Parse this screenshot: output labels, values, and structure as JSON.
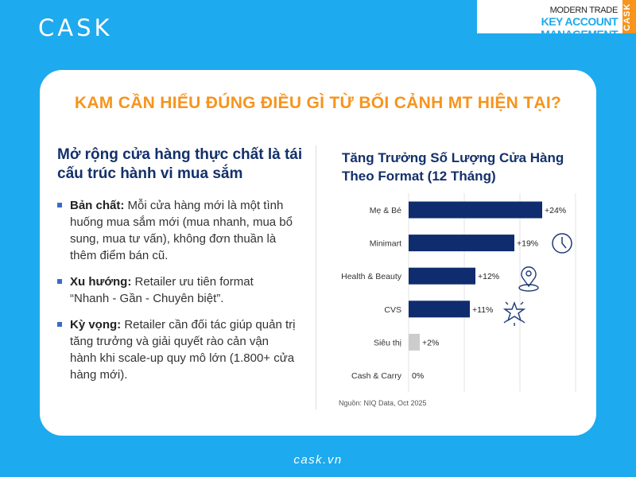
{
  "logo": "CASK",
  "badge": {
    "line1": "MODERN TRADE",
    "line2": "KEY ACCOUNT MANAGEMENT",
    "side": "CASK"
  },
  "title": "KAM CẦN HIỂU ĐÚNG ĐIỀU GÌ TỪ BỐI CẢNH MT HIỆN TẠI?",
  "left": {
    "heading": "Mở rộng cửa hàng thực chất là tái cấu trúc hành vi mua sắm",
    "bullets": [
      {
        "label": "Bản chất:",
        "text": " Mỗi cửa hàng mới là một tình huống mua sắm mới (mua nhanh, mua bổ sung, mua tư vấn), không đơn thuần là thêm điểm bán cũ."
      },
      {
        "label": "Xu hướng:",
        "text": " Retailer ưu tiên format “Nhanh - Gần - Chuyên biệt”."
      },
      {
        "label": "Kỳ vọng:",
        "text": " Retailer cần đối tác giúp quản trị tăng trưởng và giải quyết rào cản vận hành khi scale-up quy mô lớn (1.800+ cửa hàng mới)."
      }
    ]
  },
  "chart_data": {
    "type": "bar",
    "orientation": "horizontal",
    "title": "Tăng Trưởng Số Lượng Cửa Hàng Theo Format (12 Tháng)",
    "categories": [
      "Mẹ & Bé",
      "Minimart",
      "Health & Beauty",
      "CVS",
      "Siêu thị",
      "Cash & Carry"
    ],
    "values": [
      24,
      19,
      12,
      11,
      2,
      0
    ],
    "data_labels": [
      "+24%",
      "+19%",
      "+12%",
      "+11%",
      "+2%",
      "0%"
    ],
    "colors": [
      "#0F2C6E",
      "#0F2C6E",
      "#0F2C6E",
      "#0F2C6E",
      "#CCCCCC",
      "#CCCCCC"
    ],
    "xlim": [
      0,
      30
    ],
    "grid": true,
    "icons": [
      "",
      "clock-icon",
      "location-pin-icon",
      "sparkle-star-icon",
      "",
      ""
    ],
    "source": "Nguồn: NIQ Data, Oct 2025"
  },
  "footer": "cask.vn"
}
